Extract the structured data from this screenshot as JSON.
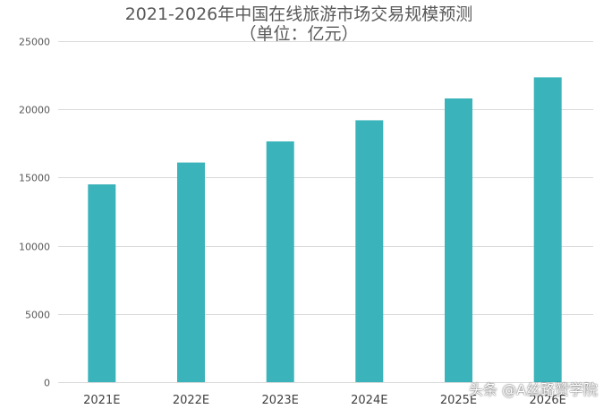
{
  "chart_data": {
    "type": "bar",
    "title": "2021-2026年中国在线旅游市场交易规模预测",
    "subtitle": "（单位：亿元）",
    "categories": [
      "2021E",
      "2022E",
      "2023E",
      "2024E",
      "2025E",
      "2026E"
    ],
    "values": [
      14500,
      16100,
      17650,
      19200,
      20800,
      22350
    ],
    "ylim": [
      0,
      25000
    ],
    "yticks": [
      0,
      5000,
      10000,
      15000,
      20000,
      25000
    ],
    "ytick_labels": [
      "0",
      "5000",
      "10000",
      "15000",
      "20000",
      "25000"
    ],
    "grid": true,
    "bar_color": "#3bb3ba",
    "grid_color": "#d9d9d9",
    "legend": "none"
  },
  "watermark": "头条 @A丝路赞学院"
}
